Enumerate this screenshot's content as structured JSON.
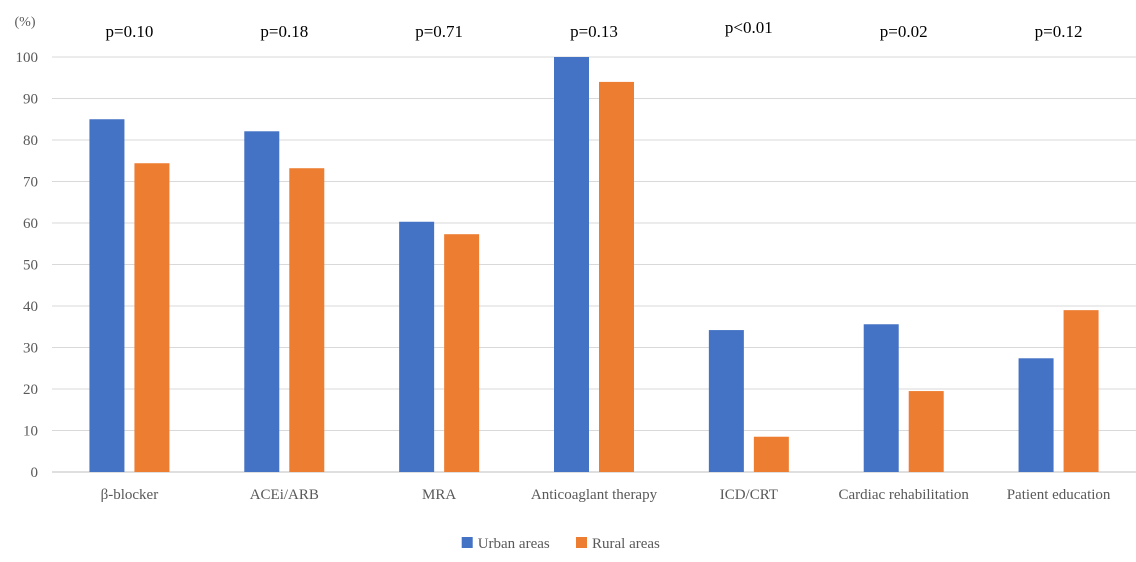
{
  "chart_data": {
    "type": "bar",
    "title": "",
    "xlabel": "",
    "ylabel": "(%)",
    "ylim": [
      0,
      100
    ],
    "yticks": [
      0,
      10,
      20,
      30,
      40,
      50,
      60,
      70,
      80,
      90,
      100
    ],
    "grid": true,
    "legend_position": "bottom",
    "categories": [
      "β-blocker",
      "ACEi/ARB",
      "MRA",
      "Anticoaglant therapy",
      "ICD/CRT",
      "Cardiac rehabilitation",
      "Patient education"
    ],
    "series": [
      {
        "name": "Urban areas",
        "color": "#4472C4",
        "values": [
          85.0,
          82.1,
          60.3,
          100.0,
          34.2,
          35.6,
          27.4
        ]
      },
      {
        "name": "Rural areas",
        "color": "#ED7D31",
        "values": [
          74.4,
          73.2,
          57.3,
          94.0,
          8.5,
          19.5,
          39.0
        ]
      }
    ],
    "annotations": [
      "p=0.10",
      "p=0.18",
      "p=0.71",
      "p=0.13",
      "p<0.01",
      "p=0.02",
      "p=0.12"
    ]
  }
}
